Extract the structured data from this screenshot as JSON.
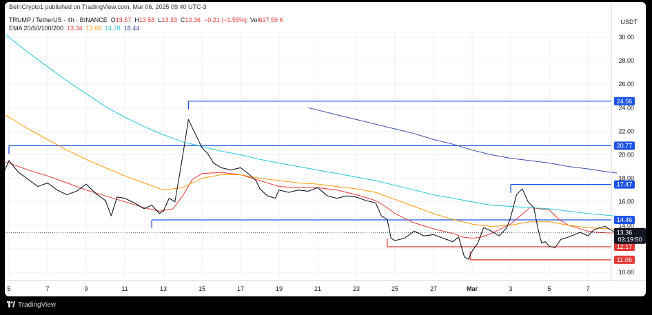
{
  "header": {
    "published": "BeInCrypto1 published on TradingView.com, Mar 06, 2025 09:40 UTC-3",
    "symbol": "TRUMP / TetherUS · 4h · BINANCE",
    "ohlc": {
      "o_label": "O",
      "o": "13.57",
      "h_label": "H",
      "h": "13.58",
      "l_label": "L",
      "l": "13.33",
      "c_label": "C",
      "c": "13.36",
      "change": "−0.21 (−1.55%)",
      "vol_label": "Vol",
      "vol": "617.59 K"
    },
    "ema": {
      "label": "EMA 20/50/100/200",
      "v20": "13.34",
      "v50": "13.66",
      "v100": "14.78",
      "v200": "18.44"
    },
    "currency": "USDT"
  },
  "footer": {
    "brand": "TradingView"
  },
  "colors": {
    "up": "#26a69a",
    "down": "#131722",
    "ema20": "#e53935",
    "ema50": "#ff9800",
    "ema100": "#26c6da",
    "ema200": "#3949ab",
    "resistance": "#1e53e5",
    "support": "#e53935",
    "grid": "#eef0f3"
  },
  "chart_data": {
    "type": "line",
    "title": "",
    "y_axis": {
      "min": 10,
      "max": 31,
      "ticks": [
        "10.00",
        "12.00",
        "14.00",
        "16.00",
        "18.00",
        "20.00",
        "22.00",
        "24.00",
        "26.00",
        "28.00",
        "30.00"
      ],
      "position": "right"
    },
    "x_axis": {
      "labels": [
        "5",
        "7",
        "9",
        "11",
        "13",
        "15",
        "17",
        "19",
        "21",
        "23",
        "25",
        "27",
        "Mar",
        "3",
        "5",
        "7"
      ]
    },
    "last_price": {
      "value": 13.36,
      "label": "13.36",
      "countdown": "03:19:50"
    },
    "levels": [
      {
        "kind": "resistance",
        "value": 24.56,
        "label": "24.56",
        "from_date": "14"
      },
      {
        "kind": "resistance",
        "value": 20.77,
        "label": "20.77",
        "from_date": "5"
      },
      {
        "kind": "resistance",
        "value": 17.47,
        "label": "17.47",
        "from_date": "Mar"
      },
      {
        "kind": "resistance",
        "value": 14.46,
        "label": "14.46",
        "from_date": "12"
      },
      {
        "kind": "support",
        "value": 12.17,
        "label": "12.17",
        "from_date": "24"
      },
      {
        "kind": "support",
        "value": 11.06,
        "label": "11.06",
        "from_date": "28"
      }
    ],
    "series": [
      {
        "name": "EMA 20",
        "color": "#e53935",
        "x": [
          4.6,
          5,
          6,
          7,
          8,
          9,
          10,
          11,
          12,
          12.8,
          13.5,
          14,
          14.5,
          15,
          16,
          17,
          18,
          19,
          20,
          21,
          22,
          23,
          24,
          24.5,
          25,
          26,
          27,
          28,
          28.5,
          29,
          29.5,
          30,
          30.5,
          31,
          32,
          33,
          33.5,
          34,
          35,
          35.5,
          36,
          36.5
        ],
        "y": [
          19.4,
          19.3,
          18.7,
          18.2,
          17.6,
          17.0,
          16.5,
          16.0,
          15.5,
          15.2,
          15.4,
          16.5,
          17.9,
          18.4,
          18.5,
          18.3,
          17.8,
          17.3,
          17.2,
          17.2,
          17.0,
          16.6,
          16.1,
          15.6,
          15.0,
          14.2,
          13.7,
          13.3,
          13.0,
          12.9,
          13.0,
          13.3,
          13.7,
          14.1,
          15.5,
          15.3,
          14.5,
          14.0,
          13.5,
          13.4,
          13.35,
          13.34
        ]
      },
      {
        "name": "EMA 50",
        "color": "#ff9800",
        "x": [
          4.6,
          5,
          6,
          7,
          8,
          9,
          10,
          11,
          12,
          13,
          14,
          15,
          16,
          17,
          18,
          19,
          20,
          21,
          22,
          23,
          24,
          25,
          26,
          27,
          28,
          29,
          30,
          31,
          32,
          33,
          34,
          35,
          36,
          36.5
        ],
        "y": [
          23.5,
          23.2,
          22.2,
          21.3,
          20.4,
          19.6,
          18.9,
          18.2,
          17.6,
          17.0,
          17.2,
          18.0,
          18.3,
          18.3,
          18.0,
          17.8,
          17.6,
          17.5,
          17.3,
          17.1,
          16.8,
          16.2,
          15.6,
          15.0,
          14.5,
          14.1,
          13.9,
          14.0,
          14.3,
          14.3,
          14.0,
          13.8,
          13.7,
          13.66
        ]
      },
      {
        "name": "EMA 100",
        "color": "#26c6da",
        "x": [
          4.6,
          5,
          6,
          7,
          8,
          9,
          10,
          11,
          12,
          13,
          14,
          15,
          16,
          17,
          18,
          19,
          20,
          21,
          22,
          23,
          24,
          25,
          26,
          27,
          28,
          29,
          30,
          31,
          32,
          33,
          34,
          35,
          36,
          36.5
        ],
        "y": [
          30.5,
          30.0,
          28.7,
          27.5,
          26.3,
          25.2,
          24.1,
          23.2,
          22.4,
          21.7,
          21.1,
          20.7,
          20.3,
          20.0,
          19.6,
          19.3,
          19.0,
          18.7,
          18.4,
          18.1,
          17.8,
          17.4,
          17.0,
          16.6,
          16.3,
          16.0,
          15.7,
          15.6,
          15.5,
          15.4,
          15.2,
          15.0,
          14.85,
          14.78
        ]
      },
      {
        "name": "EMA 200",
        "color": "#3949ab",
        "x": [
          20.5,
          21,
          22,
          23,
          24,
          25,
          26,
          27,
          28,
          29,
          30,
          31,
          32,
          33,
          34,
          35,
          36,
          36.5
        ],
        "y": [
          24.0,
          23.8,
          23.4,
          23.0,
          22.6,
          22.2,
          21.8,
          21.3,
          20.9,
          20.4,
          20.0,
          19.7,
          19.5,
          19.3,
          19.0,
          18.8,
          18.55,
          18.44
        ]
      },
      {
        "name": "Price",
        "color": "#131722",
        "x": [
          4.6,
          5,
          5.2,
          5.5,
          6,
          6.5,
          7,
          7.5,
          8,
          8.5,
          9,
          9.5,
          10,
          10.3,
          10.6,
          11,
          11.5,
          12,
          12.4,
          12.8,
          13,
          13.3,
          13.6,
          13.9,
          14.1,
          14.3,
          14.5,
          14.8,
          15,
          15.3,
          15.6,
          16,
          16.5,
          17,
          17.4,
          17.8,
          18,
          18.4,
          18.8,
          19,
          19.5,
          20,
          20.5,
          21,
          21.5,
          22,
          22.5,
          23,
          23.5,
          24,
          24.3,
          24.6,
          24.8,
          25,
          25.5,
          26,
          26.5,
          27,
          27.5,
          28,
          28.3,
          28.6,
          28.8,
          29,
          29.3,
          29.6,
          30,
          30.4,
          30.8,
          31,
          31.3,
          31.6,
          31.9,
          32.2,
          32.4,
          32.6,
          32.8,
          33,
          33.3,
          33.6,
          34,
          34.3,
          34.6,
          35,
          35.3,
          35.6,
          35.9,
          36.2,
          36.5
        ],
        "y": [
          18.0,
          19.5,
          19.1,
          18.5,
          17.9,
          17.3,
          17.6,
          17.0,
          16.6,
          16.9,
          17.5,
          16.7,
          16.1,
          14.8,
          16.4,
          16.3,
          15.9,
          15.4,
          15.7,
          15.0,
          15.2,
          16.3,
          16.0,
          18.9,
          20.9,
          23.0,
          22.3,
          21.3,
          20.6,
          20.1,
          19.3,
          18.9,
          18.7,
          18.9,
          18.4,
          17.8,
          17.1,
          16.5,
          16.3,
          17.0,
          16.8,
          17.0,
          16.9,
          17.2,
          16.5,
          16.3,
          16.5,
          16.4,
          16.1,
          15.9,
          14.8,
          14.5,
          12.9,
          12.7,
          12.9,
          13.5,
          13.1,
          13.2,
          12.9,
          12.6,
          13.0,
          11.3,
          11.1,
          11.8,
          12.5,
          13.8,
          13.5,
          13.1,
          13.8,
          14.7,
          16.6,
          17.1,
          16.0,
          15.5,
          13.8,
          12.5,
          12.6,
          12.2,
          12.1,
          12.8,
          13.0,
          13.2,
          13.4,
          13.1,
          13.6,
          13.8,
          13.9,
          13.57,
          13.36
        ]
      }
    ]
  }
}
